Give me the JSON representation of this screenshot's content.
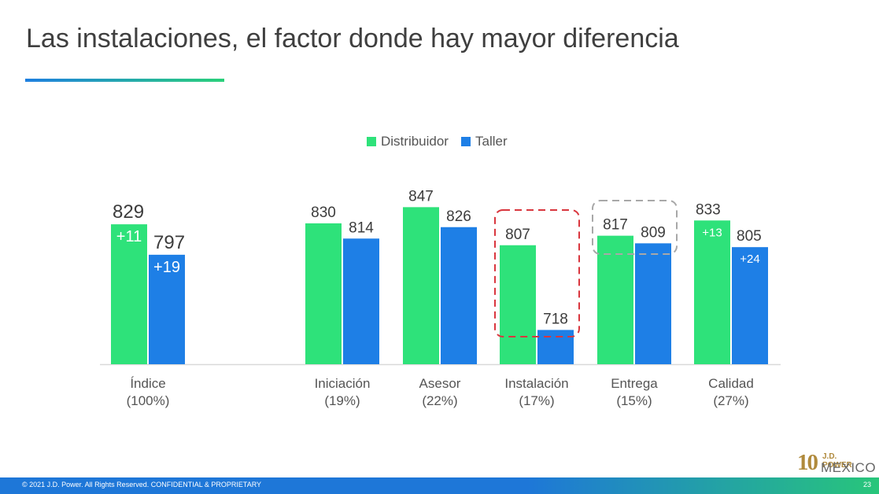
{
  "slide": {
    "title": "Las instalaciones, el factor donde hay mayor diferencia",
    "footer": "© 2021 J.D. Power. All Rights Reserved. CONFIDENTIAL & PROPRIETARY",
    "page_number": "23",
    "logo": {
      "number": "10",
      "brand": "J.D. POWER",
      "sub": "MEXICO"
    }
  },
  "colors": {
    "distribuidor": "#2ee27a",
    "taller": "#1e7fe6",
    "highlight_red": "#d9363e",
    "highlight_gray": "#a8a8a8"
  },
  "chart_data": {
    "type": "bar",
    "categories": [
      {
        "name": "Índice",
        "weight": "(100%)"
      },
      {
        "name": "Iniciación",
        "weight": "(19%)"
      },
      {
        "name": "Asesor",
        "weight": "(22%)"
      },
      {
        "name": "Instalación",
        "weight": "(17%)"
      },
      {
        "name": "Entrega",
        "weight": "(15%)"
      },
      {
        "name": "Calidad",
        "weight": "(27%)"
      }
    ],
    "series": [
      {
        "name": "Distribuidor",
        "values": [
          829,
          830,
          847,
          807,
          817,
          833
        ]
      },
      {
        "name": "Taller",
        "values": [
          797,
          814,
          826,
          718,
          809,
          805
        ]
      }
    ],
    "inner_labels": [
      {
        "category": 0,
        "series": 0,
        "text": "+11"
      },
      {
        "category": 0,
        "series": 1,
        "text": "+19"
      },
      {
        "category": 5,
        "series": 0,
        "text": "+13"
      },
      {
        "category": 5,
        "series": 1,
        "text": "+24"
      }
    ],
    "highlights": [
      {
        "category": 3,
        "style": "red-dashed"
      },
      {
        "category": 4,
        "style": "gray-dashed"
      }
    ],
    "legend_position": "top",
    "grid": false
  }
}
